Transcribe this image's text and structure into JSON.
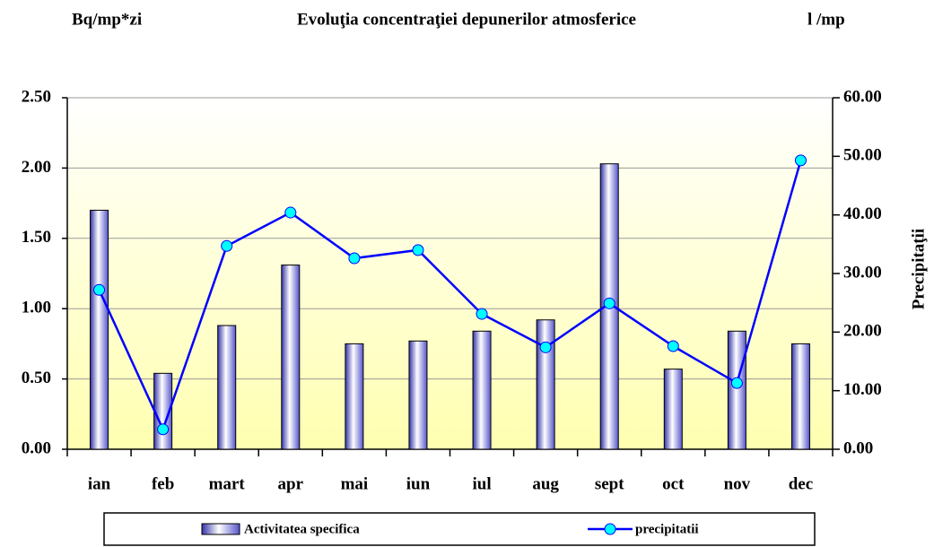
{
  "chart_data": {
    "type": "bar-line",
    "title": "Evoluţia concentraţiei depunerilor atmosferice",
    "y_label": "Bq/mp*zi",
    "y2_unit": "l /mp",
    "y2_label": "Precipitaţii",
    "categories": [
      "ian",
      "feb",
      "mart",
      "apr",
      "mai",
      "iun",
      "iul",
      "aug",
      "sept",
      "oct",
      "nov",
      "dec"
    ],
    "series": [
      {
        "name": "Activitatea specifica",
        "type": "bar",
        "color": "#9999ff",
        "axis": "y",
        "values": [
          1.7,
          0.54,
          0.88,
          1.31,
          0.75,
          0.77,
          0.84,
          0.92,
          2.03,
          0.57,
          0.84,
          0.75
        ]
      },
      {
        "name": "precipitatii",
        "type": "line",
        "color": "#0000ff",
        "marker_color": "#00ffff",
        "axis": "y2",
        "values": [
          27.2,
          3.4,
          34.7,
          40.4,
          32.6,
          34.0,
          23.1,
          17.4,
          24.9,
          17.6,
          11.3,
          49.3
        ]
      }
    ],
    "ylim": [
      0,
      2.5
    ],
    "yticks": [
      {
        "value": 0,
        "label": "0.00"
      },
      {
        "value": 0.5,
        "label": "0.50"
      },
      {
        "value": 1,
        "label": "1.00"
      },
      {
        "value": 1.5,
        "label": "1.50"
      },
      {
        "value": 2,
        "label": "2.00"
      },
      {
        "value": 2.5,
        "label": "2.50"
      }
    ],
    "y2lim": [
      0,
      60
    ],
    "y2ticks": [
      {
        "value": 0,
        "label": "0.00"
      },
      {
        "value": 10,
        "label": "10.00"
      },
      {
        "value": 20,
        "label": "20.00"
      },
      {
        "value": 30,
        "label": "30.00"
      },
      {
        "value": 40,
        "label": "40.00"
      },
      {
        "value": 50,
        "label": "50.00"
      },
      {
        "value": 60,
        "label": "60.00"
      }
    ],
    "grid": true,
    "legend": "bottom"
  }
}
